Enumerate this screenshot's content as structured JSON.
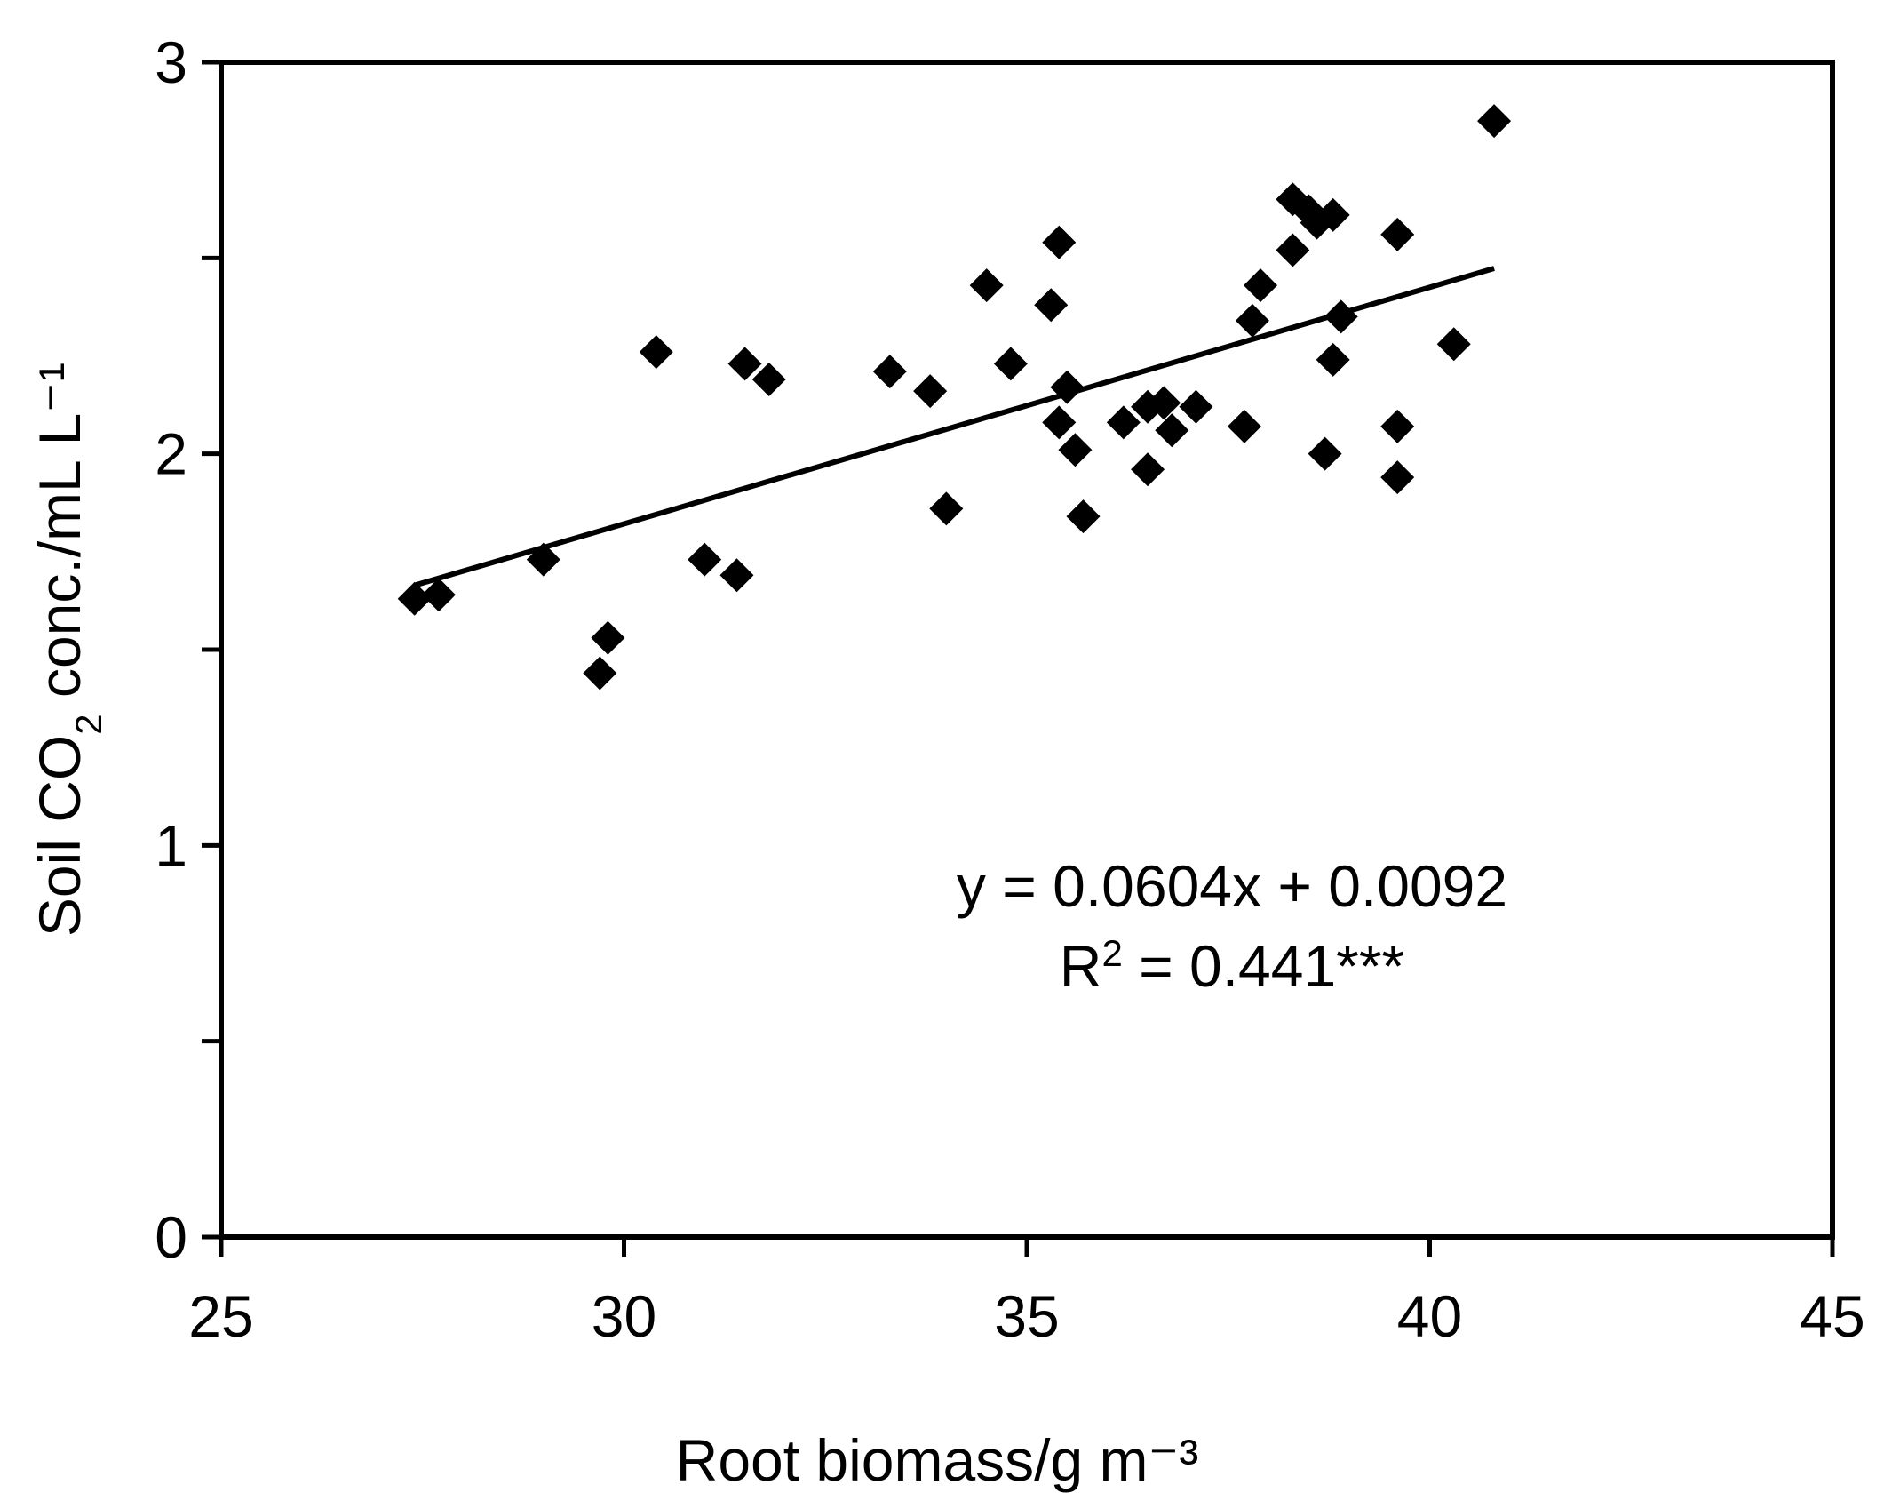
{
  "chart_data": {
    "type": "scatter",
    "title": "",
    "xlabel": "Root biomass/g m⁻³",
    "ylabel": {
      "prefix": "Soil CO",
      "subscript": "2",
      "suffix": " conc./mL L⁻¹"
    },
    "xlim": [
      25,
      45
    ],
    "ylim": [
      0,
      3
    ],
    "x_ticks": [
      25,
      30,
      35,
      40,
      45
    ],
    "y_ticks": [
      0,
      1,
      2,
      3
    ],
    "x_tick_labels": [
      "25",
      "30",
      "35",
      "40",
      "45"
    ],
    "y_tick_labels": [
      "0",
      "1",
      "2",
      "3"
    ],
    "grid": false,
    "legend": "none",
    "marker": "diamond",
    "marker_color": "#000000",
    "points": [
      [
        27.4,
        1.63
      ],
      [
        27.7,
        1.64
      ],
      [
        29.0,
        1.73
      ],
      [
        29.7,
        1.44
      ],
      [
        29.8,
        1.53
      ],
      [
        30.4,
        2.26
      ],
      [
        31.0,
        1.73
      ],
      [
        31.4,
        1.69
      ],
      [
        31.5,
        2.23
      ],
      [
        31.8,
        2.19
      ],
      [
        33.3,
        2.21
      ],
      [
        33.8,
        2.16
      ],
      [
        34.0,
        1.86
      ],
      [
        34.5,
        2.43
      ],
      [
        34.8,
        2.23
      ],
      [
        35.3,
        2.38
      ],
      [
        35.4,
        2.54
      ],
      [
        35.4,
        2.08
      ],
      [
        35.5,
        2.17
      ],
      [
        35.6,
        2.01
      ],
      [
        35.7,
        1.84
      ],
      [
        36.2,
        2.08
      ],
      [
        36.5,
        2.12
      ],
      [
        36.5,
        1.96
      ],
      [
        36.7,
        2.13
      ],
      [
        36.8,
        2.06
      ],
      [
        37.1,
        2.12
      ],
      [
        37.7,
        2.07
      ],
      [
        37.8,
        2.34
      ],
      [
        37.9,
        2.43
      ],
      [
        38.3,
        2.65
      ],
      [
        38.3,
        2.52
      ],
      [
        38.5,
        2.62
      ],
      [
        38.6,
        2.59
      ],
      [
        38.7,
        2.0
      ],
      [
        38.8,
        2.61
      ],
      [
        38.8,
        2.24
      ],
      [
        38.9,
        2.35
      ],
      [
        39.6,
        2.56
      ],
      [
        39.6,
        2.07
      ],
      [
        39.6,
        1.94
      ],
      [
        40.3,
        2.28
      ],
      [
        40.8,
        2.85
      ]
    ],
    "trendline": {
      "slope": 0.0604,
      "intercept": 0.0092,
      "x_range": [
        27.4,
        40.8
      ],
      "equation_text": "y = 0.0604x + 0.0092",
      "r2_prefix": "R",
      "r2_superscript": "2",
      "r2_value_text": " = 0.441***"
    }
  }
}
